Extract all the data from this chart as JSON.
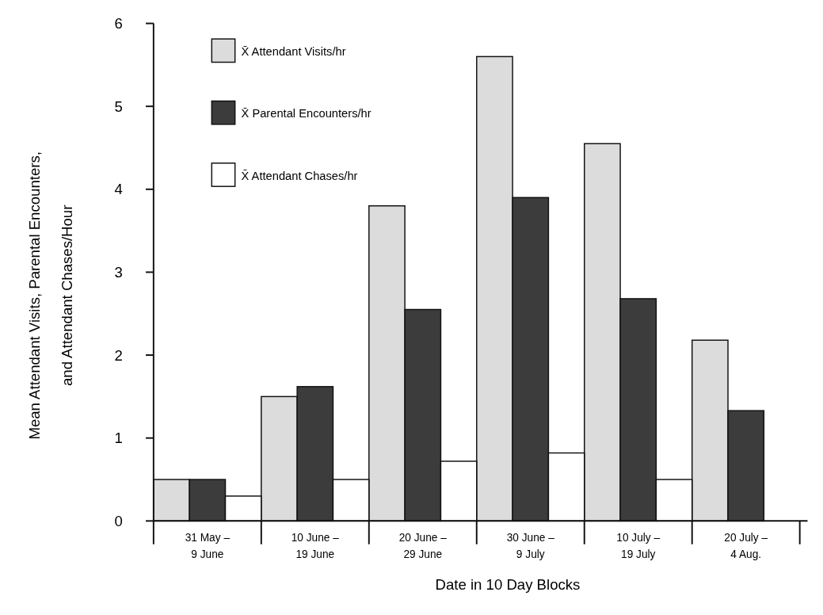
{
  "chart_data": {
    "type": "bar",
    "xlabel": "Date in 10 Day Blocks",
    "ylabel": "Mean Attendant Visits, Parental Encounters,\nand Attendant Chases/Hour",
    "categories": [
      "31 May –\n9 June",
      "10 June –\n19 June",
      "20 June –\n29 June",
      "30 June –\n9 July",
      "10 July –\n19 July",
      "20 July –\n4 Aug."
    ],
    "series": [
      {
        "name": "X̄  Attendant Visits/hr",
        "color": "#dcdcdc",
        "values": [
          0.5,
          1.5,
          3.8,
          5.6,
          4.55,
          2.18
        ]
      },
      {
        "name": "X̄  Parental Encounters/hr",
        "color": "#3c3c3c",
        "values": [
          0.5,
          1.62,
          2.55,
          3.9,
          2.68,
          1.33
        ]
      },
      {
        "name": "X̄  Attendant Chases/hr",
        "color": "#ffffff",
        "values": [
          0.3,
          0.5,
          0.72,
          0.82,
          0.5,
          null
        ]
      }
    ],
    "ylim": [
      0,
      6
    ],
    "yticks": [
      0,
      1,
      2,
      3,
      4,
      5,
      6
    ],
    "grid": false,
    "legend": "top left"
  }
}
